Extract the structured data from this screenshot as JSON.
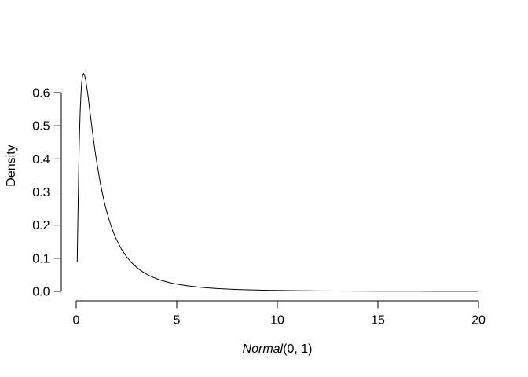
{
  "figure": {
    "background_color": "#ffffff",
    "foreground_color": "#000000",
    "xlabel_italic": "Normal",
    "xlabel_rest": "(0, 1)",
    "ylabel": "Density"
  },
  "chart_data": {
    "type": "line",
    "title": "",
    "xlabel": "Normal(0, 1)",
    "ylabel": "Density",
    "curve_description": "lognormal probability density (meanlog=0, sdlog=1), peak ~0.658 at x~0.37",
    "xlim": [
      0,
      20
    ],
    "ylim": [
      0,
      0.66
    ],
    "x_ticks": [
      0,
      5,
      10,
      15,
      20
    ],
    "x_tick_labels": [
      "0",
      "5",
      "10",
      "15",
      "20"
    ],
    "y_ticks": [
      0.0,
      0.1,
      0.2,
      0.3,
      0.4,
      0.5,
      0.6
    ],
    "y_tick_labels": [
      "0.0",
      "0.1",
      "0.2",
      "0.3",
      "0.4",
      "0.5",
      "0.6"
    ],
    "grid": false,
    "legend": null,
    "line_color": "#000000",
    "points": [
      [
        0.05,
        0.0897
      ],
      [
        0.075,
        0.1856
      ],
      [
        0.1,
        0.2815
      ],
      [
        0.125,
        0.367
      ],
      [
        0.15,
        0.44
      ],
      [
        0.175,
        0.499
      ],
      [
        0.2,
        0.5462
      ],
      [
        0.225,
        0.5828
      ],
      [
        0.25,
        0.6105
      ],
      [
        0.275,
        0.6305
      ],
      [
        0.3,
        0.6442
      ],
      [
        0.325,
        0.6526
      ],
      [
        0.35,
        0.657
      ],
      [
        0.368,
        0.6577
      ],
      [
        0.4,
        0.6555
      ],
      [
        0.425,
        0.651
      ],
      [
        0.45,
        0.6445
      ],
      [
        0.475,
        0.6367
      ],
      [
        0.5,
        0.6276
      ],
      [
        0.55,
        0.6067
      ],
      [
        0.6,
        0.5836
      ],
      [
        0.65,
        0.5593
      ],
      [
        0.7,
        0.5348
      ],
      [
        0.75,
        0.5103
      ],
      [
        0.8,
        0.4864
      ],
      [
        0.85,
        0.4632
      ],
      [
        0.9,
        0.4408
      ],
      [
        0.95,
        0.4194
      ],
      [
        1.0,
        0.3989
      ],
      [
        1.1,
        0.3611
      ],
      [
        1.2,
        0.327
      ],
      [
        1.3,
        0.2965
      ],
      [
        1.4,
        0.2693
      ],
      [
        1.5,
        0.245
      ],
      [
        1.6,
        0.2233
      ],
      [
        1.7,
        0.2039
      ],
      [
        1.8,
        0.1865
      ],
      [
        1.9,
        0.1709
      ],
      [
        2.0,
        0.1569
      ],
      [
        2.25,
        0.1276
      ],
      [
        2.5,
        0.1049
      ],
      [
        2.75,
        0.087
      ],
      [
        3.0,
        0.0727
      ],
      [
        3.25,
        0.0613
      ],
      [
        3.5,
        0.052
      ],
      [
        3.75,
        0.0444
      ],
      [
        4.0,
        0.0382
      ],
      [
        4.25,
        0.033
      ],
      [
        4.5,
        0.0286
      ],
      [
        4.75,
        0.025
      ],
      [
        5.0,
        0.0218
      ],
      [
        5.5,
        0.017
      ],
      [
        6.0,
        0.0134
      ],
      [
        6.5,
        0.0106
      ],
      [
        7.0,
        0.0086
      ],
      [
        7.5,
        0.007
      ],
      [
        8.0,
        0.0057
      ],
      [
        8.5,
        0.0048
      ],
      [
        9.0,
        0.004
      ],
      [
        9.5,
        0.0033
      ],
      [
        10.0,
        0.0028
      ],
      [
        11.0,
        0.0021
      ],
      [
        12.0,
        0.0015
      ],
      [
        13.0,
        0.0011
      ],
      [
        14.0,
        0.0009
      ],
      [
        15.0,
        0.0007
      ],
      [
        16.0,
        0.0005
      ],
      [
        17.0,
        0.0004
      ],
      [
        18.0,
        0.0003
      ],
      [
        19.0,
        0.0003
      ],
      [
        20.0,
        0.0002
      ]
    ]
  }
}
